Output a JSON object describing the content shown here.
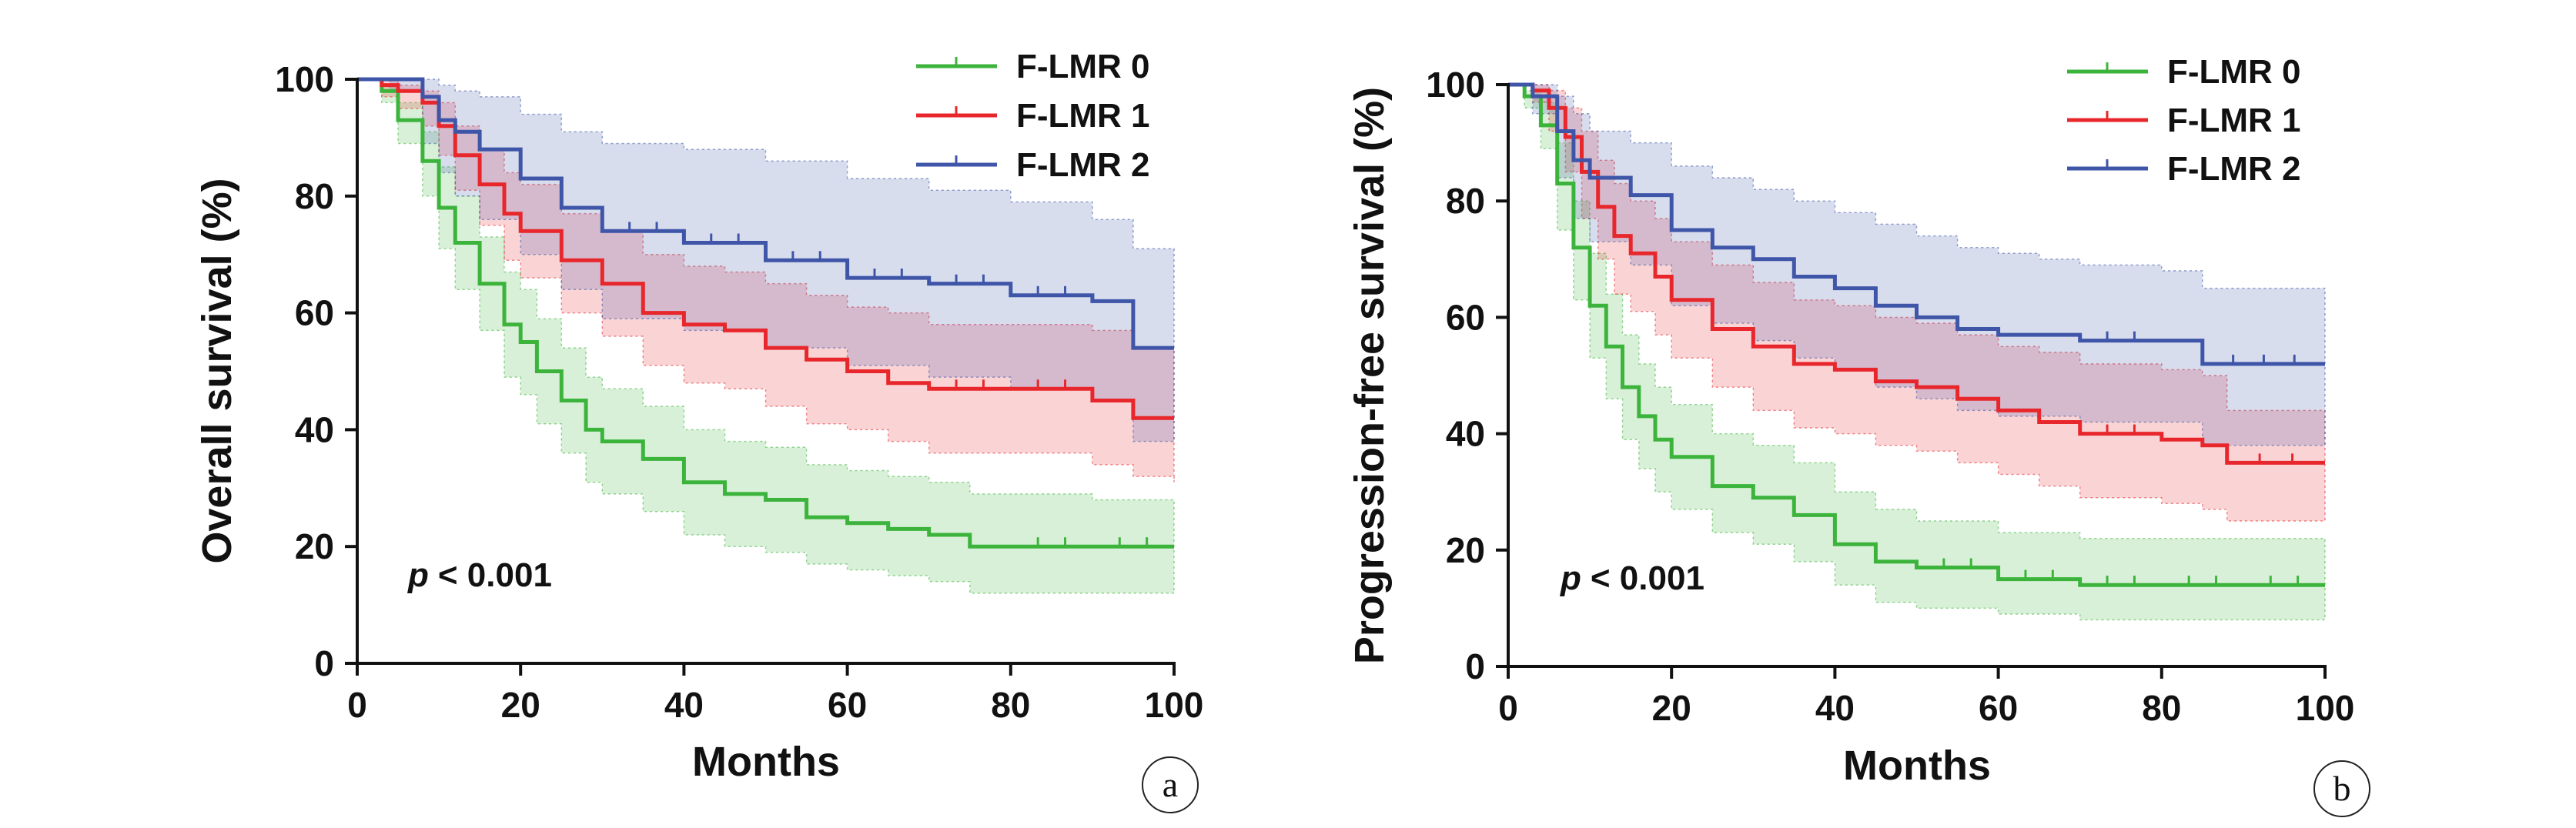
{
  "chart_data": [
    {
      "type": "line",
      "subtype": "kaplan-meier survival curves with shaded confidence bands",
      "panel_label": "a",
      "xlabel": "Months",
      "ylabel": "Overall survival (%)",
      "xlim": [
        0,
        100
      ],
      "ylim": [
        0,
        100
      ],
      "xticks": [
        "0",
        "20",
        "40",
        "60",
        "80",
        "100"
      ],
      "yticks": [
        "0",
        "20",
        "40",
        "60",
        "80",
        "100"
      ],
      "grid": false,
      "legend_position": "top-right",
      "annotation": {
        "p_symbol": "p",
        "p_text": "< 0.001"
      },
      "series": [
        {
          "name": "F-LMR 0",
          "color": "#3cb43c",
          "x": [
            0,
            3,
            5,
            8,
            10,
            12,
            15,
            18,
            20,
            22,
            25,
            28,
            30,
            35,
            40,
            45,
            50,
            55,
            60,
            65,
            70,
            75,
            80,
            90,
            100
          ],
          "values": [
            100,
            98,
            93,
            86,
            78,
            72,
            65,
            58,
            55,
            50,
            45,
            40,
            38,
            35,
            31,
            29,
            28,
            25,
            24,
            23,
            22,
            20,
            20,
            20,
            20
          ],
          "ci_upper": [
            100,
            99,
            96,
            91,
            85,
            80,
            73,
            67,
            64,
            59,
            54,
            49,
            47,
            44,
            40,
            38,
            37,
            34,
            33,
            32,
            31,
            29,
            29,
            28,
            28
          ],
          "ci_lower": [
            100,
            96,
            89,
            80,
            71,
            64,
            57,
            49,
            46,
            41,
            36,
            31,
            29,
            26,
            22,
            20,
            19,
            17,
            16,
            15,
            14,
            12,
            12,
            12,
            12
          ]
        },
        {
          "name": "F-LMR 1",
          "color": "#e8272c",
          "x": [
            0,
            3,
            5,
            8,
            10,
            12,
            15,
            18,
            20,
            25,
            30,
            35,
            40,
            45,
            50,
            55,
            60,
            65,
            70,
            80,
            90,
            95,
            100
          ],
          "values": [
            100,
            99,
            98,
            96,
            92,
            87,
            82,
            77,
            74,
            69,
            65,
            60,
            58,
            57,
            54,
            52,
            50,
            48,
            47,
            47,
            45,
            42,
            42
          ],
          "ci_upper": [
            100,
            100,
            99,
            98,
            96,
            92,
            88,
            84,
            82,
            77,
            74,
            70,
            68,
            67,
            65,
            63,
            61,
            60,
            58,
            58,
            57,
            54,
            54
          ],
          "ci_lower": [
            100,
            97,
            95,
            92,
            87,
            81,
            75,
            69,
            66,
            60,
            56,
            51,
            48,
            47,
            44,
            41,
            40,
            38,
            36,
            36,
            34,
            32,
            31
          ]
        },
        {
          "name": "F-LMR 2",
          "color": "#3e55a8",
          "x": [
            0,
            4,
            8,
            10,
            12,
            15,
            20,
            25,
            30,
            40,
            50,
            60,
            70,
            80,
            90,
            95,
            100
          ],
          "values": [
            100,
            100,
            97,
            93,
            91,
            88,
            83,
            78,
            74,
            72,
            69,
            66,
            65,
            63,
            62,
            54,
            54
          ],
          "ci_upper": [
            100,
            100,
            100,
            99,
            98,
            97,
            94,
            91,
            89,
            88,
            86,
            83,
            81,
            79,
            76,
            71,
            70
          ],
          "ci_lower": [
            100,
            98,
            89,
            84,
            80,
            76,
            70,
            64,
            59,
            57,
            54,
            51,
            49,
            47,
            45,
            38,
            38
          ]
        }
      ]
    },
    {
      "type": "line",
      "subtype": "kaplan-meier survival curves with shaded confidence bands",
      "panel_label": "b",
      "xlabel": "Months",
      "ylabel": "Progression-free survival (%)",
      "xlim": [
        0,
        100
      ],
      "ylim": [
        0,
        100
      ],
      "xticks": [
        "0",
        "20",
        "40",
        "60",
        "80",
        "100"
      ],
      "yticks": [
        "0",
        "20",
        "40",
        "60",
        "80",
        "100"
      ],
      "grid": false,
      "legend_position": "top-right",
      "annotation": {
        "p_symbol": "p",
        "p_text": "< 0.001"
      },
      "series": [
        {
          "name": "F-LMR 0",
          "color": "#3cb43c",
          "x": [
            0,
            2,
            4,
            6,
            8,
            10,
            12,
            14,
            16,
            18,
            20,
            25,
            30,
            35,
            40,
            45,
            50,
            60,
            70,
            80,
            90,
            100
          ],
          "values": [
            100,
            98,
            93,
            83,
            72,
            62,
            55,
            48,
            43,
            39,
            36,
            31,
            29,
            26,
            21,
            18,
            17,
            15,
            14,
            14,
            14,
            14
          ],
          "ci_upper": [
            100,
            99,
            97,
            90,
            80,
            71,
            64,
            57,
            52,
            48,
            45,
            40,
            38,
            35,
            30,
            27,
            25,
            23,
            22,
            22,
            22,
            21
          ],
          "ci_lower": [
            100,
            96,
            89,
            75,
            63,
            53,
            46,
            39,
            34,
            30,
            27,
            23,
            21,
            18,
            14,
            11,
            10,
            9,
            8,
            8,
            8,
            8
          ]
        },
        {
          "name": "F-LMR 1",
          "color": "#e8272c",
          "x": [
            0,
            3,
            5,
            7,
            9,
            11,
            13,
            15,
            18,
            20,
            25,
            30,
            35,
            40,
            45,
            50,
            55,
            60,
            65,
            70,
            80,
            85,
            88,
            100
          ],
          "values": [
            100,
            99,
            96,
            91,
            85,
            79,
            74,
            71,
            67,
            63,
            58,
            55,
            52,
            51,
            49,
            48,
            46,
            44,
            42,
            40,
            39,
            38,
            35,
            35
          ],
          "ci_upper": [
            100,
            100,
            99,
            96,
            92,
            87,
            83,
            80,
            77,
            73,
            69,
            66,
            63,
            62,
            60,
            59,
            57,
            55,
            54,
            52,
            51,
            50,
            44,
            44
          ],
          "ci_lower": [
            100,
            97,
            92,
            85,
            77,
            70,
            64,
            61,
            57,
            53,
            48,
            44,
            41,
            40,
            38,
            37,
            35,
            33,
            31,
            29,
            28,
            27,
            25,
            25
          ]
        },
        {
          "name": "F-LMR 2",
          "color": "#3e55a8",
          "x": [
            0,
            3,
            6,
            8,
            10,
            15,
            20,
            25,
            30,
            35,
            40,
            45,
            50,
            55,
            60,
            65,
            70,
            80,
            85,
            100
          ],
          "values": [
            100,
            98,
            92,
            87,
            84,
            81,
            75,
            72,
            70,
            67,
            65,
            62,
            60,
            58,
            57,
            57,
            56,
            56,
            52,
            52
          ],
          "ci_upper": [
            100,
            100,
            98,
            95,
            92,
            90,
            86,
            84,
            82,
            80,
            78,
            76,
            74,
            72,
            71,
            70,
            69,
            68,
            65,
            65
          ],
          "ci_lower": [
            100,
            95,
            84,
            77,
            73,
            69,
            62,
            59,
            56,
            53,
            51,
            48,
            46,
            44,
            43,
            43,
            42,
            42,
            38,
            38
          ]
        }
      ]
    }
  ]
}
